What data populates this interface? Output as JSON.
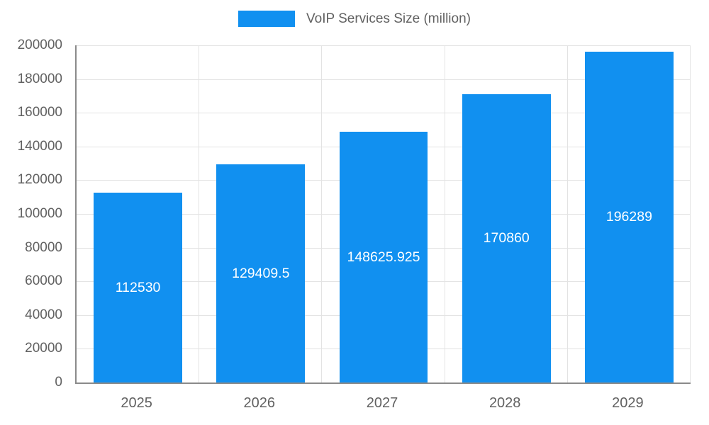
{
  "chart_data": {
    "type": "bar",
    "title": "VoIP Services Size (million)",
    "categories": [
      "2025",
      "2026",
      "2027",
      "2028",
      "2029"
    ],
    "values": [
      112530,
      129409.5,
      148625.925,
      170860,
      196289
    ],
    "value_labels": [
      "112530",
      "129409.5",
      "148625.925",
      "170860",
      "196289"
    ],
    "xlabel": "",
    "ylabel": "",
    "ylim": [
      0,
      200000
    ],
    "ytick_interval": 20000,
    "yticks": [
      0,
      20000,
      40000,
      60000,
      80000,
      100000,
      120000,
      140000,
      160000,
      180000,
      200000
    ],
    "grid": true,
    "legend_position": "top",
    "colors": {
      "bar": "#1190f0",
      "value_label": "#ffffff",
      "axis_text": "#616161",
      "gridline": "#e3e3e3",
      "axis_line": "#8a8a8a",
      "background": "#ffffff"
    }
  }
}
